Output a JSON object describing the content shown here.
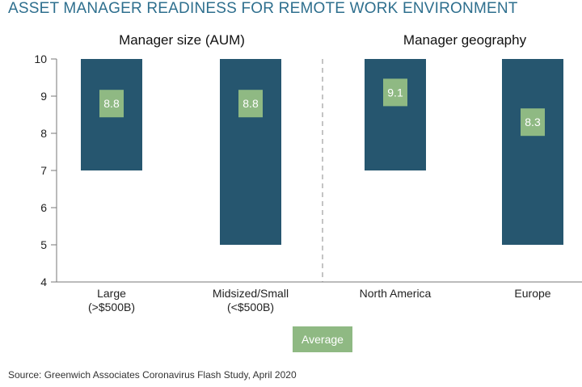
{
  "title": "ASSET MANAGER READINESS FOR REMOTE WORK ENVIRONMENT",
  "source": "Source: Greenwich Associates Coronavirus Flash Study, April 2020",
  "legend": {
    "label": "Average"
  },
  "colors": {
    "bar": "#26566f",
    "average": "#8fb983",
    "title": "#2e6f8e"
  },
  "chart_data": {
    "type": "bar",
    "subtype": "floating-range",
    "ylim": [
      4,
      10
    ],
    "yticks": [
      4,
      5,
      6,
      7,
      8,
      9,
      10
    ],
    "grid": false,
    "legend_position": "bottom",
    "panels": [
      {
        "title": "Manager size (AUM)",
        "categories": [
          {
            "label_lines": [
              "Large",
              "(>$500B)"
            ],
            "low": 7,
            "high": 10,
            "average": 8.8,
            "average_label": "8.8"
          },
          {
            "label_lines": [
              "Midsized/Small",
              "(<$500B)"
            ],
            "low": 5,
            "high": 10,
            "average": 8.8,
            "average_label": "8.8"
          }
        ]
      },
      {
        "title": "Manager geography",
        "categories": [
          {
            "label_lines": [
              "North America"
            ],
            "low": 7,
            "high": 10,
            "average": 9.1,
            "average_label": "9.1"
          },
          {
            "label_lines": [
              "Europe"
            ],
            "low": 5,
            "high": 10,
            "average": 8.3,
            "average_label": "8.3"
          }
        ]
      }
    ]
  }
}
